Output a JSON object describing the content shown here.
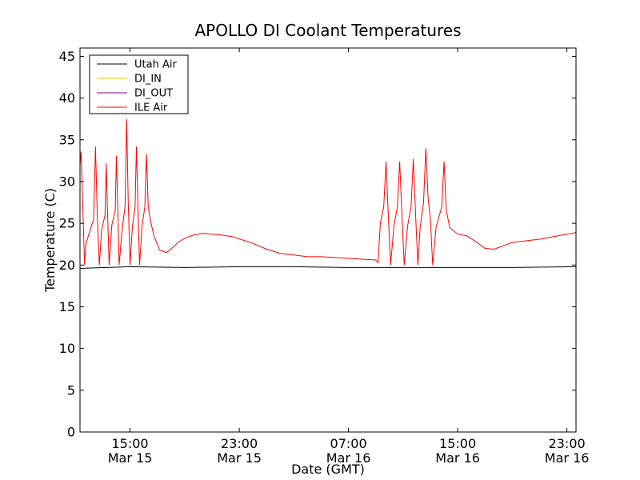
{
  "chart_data": {
    "type": "line",
    "title": "APOLLO DI Coolant Temperatures",
    "xlabel": "Date (GMT)",
    "ylabel": "Temperature (C)",
    "xlim": [
      "2014-03-15T11:20",
      "2014-03-16T23:40"
    ],
    "ylim": [
      0,
      46
    ],
    "y_ticks": [
      0,
      5,
      10,
      15,
      20,
      25,
      30,
      35,
      40,
      45
    ],
    "x_ticks": [
      {
        "x": "2014-03-15T15:00",
        "time": "15:00",
        "date": "Mar 15"
      },
      {
        "x": "2014-03-15T23:00",
        "time": "23:00",
        "date": "Mar 15"
      },
      {
        "x": "2014-03-16T07:00",
        "time": "07:00",
        "date": "Mar 16"
      },
      {
        "x": "2014-03-16T15:00",
        "time": "15:00",
        "date": "Mar 16"
      },
      {
        "x": "2014-03-16T23:00",
        "time": "23:00",
        "date": "Mar 16"
      }
    ],
    "grid": false,
    "legend_position": "top-left",
    "series": [
      {
        "name": "Utah Air",
        "color": "#000000",
        "points": [
          [
            "2014-03-15T11:20",
            19.6
          ],
          [
            "2014-03-15T15:00",
            19.8
          ],
          [
            "2014-03-15T19:00",
            19.7
          ],
          [
            "2014-03-15T23:00",
            19.8
          ],
          [
            "2014-03-16T03:00",
            19.8
          ],
          [
            "2014-03-16T07:00",
            19.7
          ],
          [
            "2014-03-16T11:00",
            19.7
          ],
          [
            "2014-03-16T15:00",
            19.7
          ],
          [
            "2014-03-16T19:00",
            19.7
          ],
          [
            "2014-03-16T23:40",
            19.8
          ]
        ]
      },
      {
        "name": "DI_IN",
        "color": "#e8c000",
        "points": []
      },
      {
        "name": "DI_OUT",
        "color": "#800080",
        "points": []
      },
      {
        "name": "ILE Air",
        "color": "#ff0000",
        "points": [
          [
            "2014-03-15T11:20",
            32.0
          ],
          [
            "2014-03-15T11:25",
            33.6
          ],
          [
            "2014-03-15T11:30",
            29.0
          ],
          [
            "2014-03-15T11:40",
            20.0
          ],
          [
            "2014-03-15T11:45",
            22.4
          ],
          [
            "2014-03-15T12:00",
            23.8
          ],
          [
            "2014-03-15T12:20",
            25.5
          ],
          [
            "2014-03-15T12:28",
            34.2
          ],
          [
            "2014-03-15T12:36",
            26.0
          ],
          [
            "2014-03-15T12:45",
            20.0
          ],
          [
            "2014-03-15T12:55",
            24.2
          ],
          [
            "2014-03-15T13:10",
            26.0
          ],
          [
            "2014-03-15T13:15",
            32.2
          ],
          [
            "2014-03-15T13:22",
            25.5
          ],
          [
            "2014-03-15T13:28",
            20.0
          ],
          [
            "2014-03-15T13:40",
            24.8
          ],
          [
            "2014-03-15T13:55",
            26.5
          ],
          [
            "2014-03-15T14:00",
            33.1
          ],
          [
            "2014-03-15T14:07",
            25.8
          ],
          [
            "2014-03-15T14:12",
            20.0
          ],
          [
            "2014-03-15T14:25",
            24.2
          ],
          [
            "2014-03-15T14:38",
            27.0
          ],
          [
            "2014-03-15T14:45",
            37.5
          ],
          [
            "2014-03-15T14:52",
            27.5
          ],
          [
            "2014-03-15T15:00",
            20.0
          ],
          [
            "2014-03-15T15:10",
            24.5
          ],
          [
            "2014-03-15T15:22",
            27.0
          ],
          [
            "2014-03-15T15:28",
            34.2
          ],
          [
            "2014-03-15T15:35",
            26.5
          ],
          [
            "2014-03-15T15:42",
            20.0
          ],
          [
            "2014-03-15T15:52",
            24.5
          ],
          [
            "2014-03-15T16:05",
            27.0
          ],
          [
            "2014-03-15T16:12",
            33.3
          ],
          [
            "2014-03-15T16:20",
            27.0
          ],
          [
            "2014-03-15T16:30",
            25.3
          ],
          [
            "2014-03-15T16:45",
            23.5
          ],
          [
            "2014-03-15T17:10",
            21.8
          ],
          [
            "2014-03-15T17:40",
            21.5
          ],
          [
            "2014-03-15T18:00",
            21.9
          ],
          [
            "2014-03-15T18:30",
            22.7
          ],
          [
            "2014-03-15T19:00",
            23.2
          ],
          [
            "2014-03-15T19:40",
            23.6
          ],
          [
            "2014-03-15T20:20",
            23.8
          ],
          [
            "2014-03-15T21:00",
            23.7
          ],
          [
            "2014-03-15T21:40",
            23.6
          ],
          [
            "2014-03-15T22:30",
            23.4
          ],
          [
            "2014-03-15T23:15",
            23.0
          ],
          [
            "2014-03-16T00:00",
            22.6
          ],
          [
            "2014-03-16T01:00",
            21.9
          ],
          [
            "2014-03-16T02:00",
            21.4
          ],
          [
            "2014-03-16T03:00",
            21.2
          ],
          [
            "2014-03-16T04:00",
            21.0
          ],
          [
            "2014-03-16T05:00",
            21.0
          ],
          [
            "2014-03-16T06:00",
            20.9
          ],
          [
            "2014-03-16T07:00",
            20.8
          ],
          [
            "2014-03-16T08:00",
            20.7
          ],
          [
            "2014-03-16T09:00",
            20.6
          ],
          [
            "2014-03-16T09:10",
            20.3
          ],
          [
            "2014-03-16T09:20",
            25.0
          ],
          [
            "2014-03-16T09:35",
            27.0
          ],
          [
            "2014-03-16T09:45",
            32.4
          ],
          [
            "2014-03-16T09:55",
            26.0
          ],
          [
            "2014-03-16T10:05",
            20.0
          ],
          [
            "2014-03-16T10:20",
            24.7
          ],
          [
            "2014-03-16T10:35",
            27.0
          ],
          [
            "2014-03-16T10:45",
            32.4
          ],
          [
            "2014-03-16T10:55",
            26.0
          ],
          [
            "2014-03-16T11:05",
            20.0
          ],
          [
            "2014-03-16T11:20",
            24.7
          ],
          [
            "2014-03-16T11:35",
            27.0
          ],
          [
            "2014-03-16T11:45",
            32.7
          ],
          [
            "2014-03-16T11:55",
            26.0
          ],
          [
            "2014-03-16T12:05",
            20.0
          ],
          [
            "2014-03-16T12:15",
            24.5
          ],
          [
            "2014-03-16T12:30",
            27.5
          ],
          [
            "2014-03-16T12:40",
            34.0
          ],
          [
            "2014-03-16T12:50",
            28.0
          ],
          [
            "2014-03-16T13:00",
            25.5
          ],
          [
            "2014-03-16T13:10",
            20.0
          ],
          [
            "2014-03-16T13:25",
            24.5
          ],
          [
            "2014-03-16T13:50",
            27.0
          ],
          [
            "2014-03-16T14:00",
            32.4
          ],
          [
            "2014-03-16T14:10",
            26.5
          ],
          [
            "2014-03-16T14:25",
            24.5
          ],
          [
            "2014-03-16T15:00",
            23.7
          ],
          [
            "2014-03-16T15:40",
            23.5
          ],
          [
            "2014-03-16T16:20",
            22.8
          ],
          [
            "2014-03-16T17:00",
            22.0
          ],
          [
            "2014-03-16T17:40",
            21.9
          ],
          [
            "2014-03-16T18:20",
            22.3
          ],
          [
            "2014-03-16T19:00",
            22.7
          ],
          [
            "2014-03-16T20:00",
            22.9
          ],
          [
            "2014-03-16T21:00",
            23.1
          ],
          [
            "2014-03-16T22:00",
            23.4
          ],
          [
            "2014-03-16T23:00",
            23.7
          ],
          [
            "2014-03-16T23:40",
            23.9
          ]
        ]
      }
    ]
  }
}
